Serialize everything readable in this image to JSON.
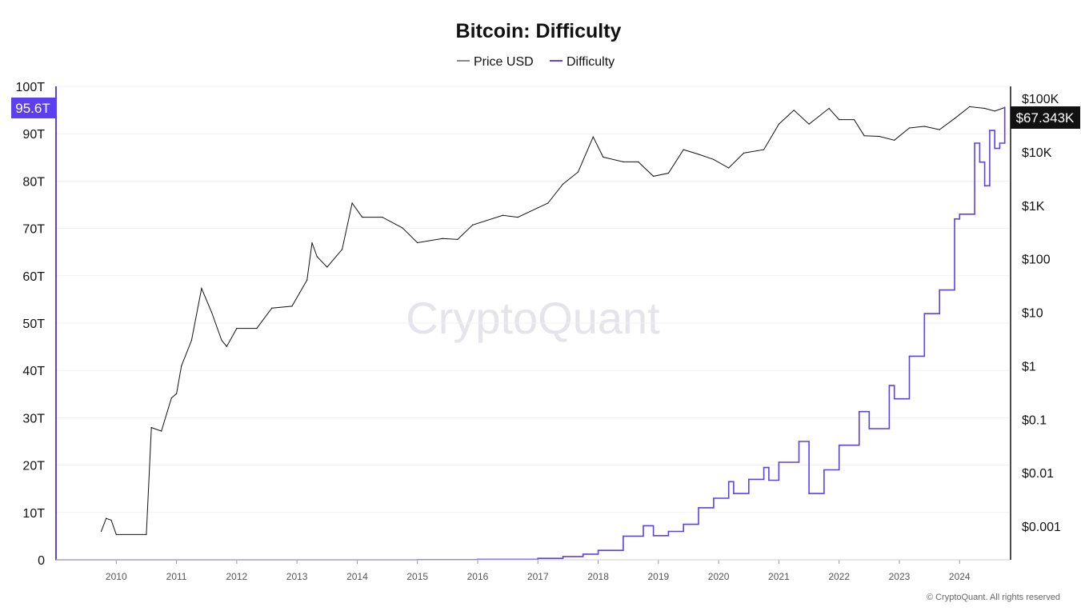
{
  "chart_data": {
    "type": "line",
    "title": "Bitcoin: Difficulty",
    "watermark": "CryptoQuant",
    "footer": "© CryptoQuant. All rights reserved",
    "legend_placement": "top-center",
    "grid": true,
    "x_ticks": [
      "2010",
      "2011",
      "2012",
      "2013",
      "2014",
      "2015",
      "2016",
      "2017",
      "2018",
      "2019",
      "2020",
      "2021",
      "2022",
      "2023",
      "2024"
    ],
    "xlim": [
      "2009-01",
      "2024-11"
    ],
    "left_axis": {
      "ticks": [
        "0",
        "10T",
        "20T",
        "30T",
        "40T",
        "50T",
        "60T",
        "70T",
        "80T",
        "90T",
        "100T"
      ],
      "ylim": [
        0,
        100
      ],
      "unit": "T",
      "current_label": "95.6T"
    },
    "right_axis": {
      "scale": "log",
      "ticks": [
        "$0.001",
        "$0.01",
        "$0.1",
        "$1",
        "$10",
        "$100",
        "$1K",
        "$10K",
        "$100K"
      ],
      "ylim": [
        0.001,
        100000
      ],
      "current_label": "$67.343K"
    },
    "series": [
      {
        "name": "Price USD",
        "axis": "right",
        "color": "#111111",
        "points": [
          [
            "2009-10",
            0.0008
          ],
          [
            "2009-11",
            0.0014
          ],
          [
            "2009-12",
            0.0013
          ],
          [
            "2010-01",
            0.0007
          ],
          [
            "2010-07",
            0.0007
          ],
          [
            "2010-08",
            0.07
          ],
          [
            "2010-10",
            0.06
          ],
          [
            "2010-12",
            0.25
          ],
          [
            "2011-01",
            0.3
          ],
          [
            "2011-02",
            1
          ],
          [
            "2011-04",
            3
          ],
          [
            "2011-06",
            28
          ],
          [
            "2011-08",
            10
          ],
          [
            "2011-10",
            3
          ],
          [
            "2011-11",
            2.3
          ],
          [
            "2012-01",
            5
          ],
          [
            "2012-05",
            5
          ],
          [
            "2012-08",
            12
          ],
          [
            "2012-12",
            13
          ],
          [
            "2013-03",
            40
          ],
          [
            "2013-04",
            200
          ],
          [
            "2013-05",
            110
          ],
          [
            "2013-07",
            70
          ],
          [
            "2013-10",
            150
          ],
          [
            "2013-12",
            1100
          ],
          [
            "2014-02",
            600
          ],
          [
            "2014-06",
            600
          ],
          [
            "2014-10",
            380
          ],
          [
            "2015-01",
            200
          ],
          [
            "2015-06",
            240
          ],
          [
            "2015-09",
            230
          ],
          [
            "2015-12",
            430
          ],
          [
            "2016-06",
            650
          ],
          [
            "2016-09",
            600
          ],
          [
            "2017-01",
            900
          ],
          [
            "2017-03",
            1100
          ],
          [
            "2017-06",
            2500
          ],
          [
            "2017-09",
            4200
          ],
          [
            "2017-12",
            19000
          ],
          [
            "2018-02",
            8000
          ],
          [
            "2018-06",
            6500
          ],
          [
            "2018-09",
            6500
          ],
          [
            "2018-12",
            3500
          ],
          [
            "2019-03",
            4000
          ],
          [
            "2019-06",
            11000
          ],
          [
            "2019-09",
            9000
          ],
          [
            "2019-12",
            7200
          ],
          [
            "2020-03",
            5000
          ],
          [
            "2020-06",
            9500
          ],
          [
            "2020-10",
            11000
          ],
          [
            "2021-01",
            33000
          ],
          [
            "2021-04",
            60000
          ],
          [
            "2021-07",
            33000
          ],
          [
            "2021-11",
            65000
          ],
          [
            "2022-01",
            40000
          ],
          [
            "2022-04",
            40000
          ],
          [
            "2022-06",
            20000
          ],
          [
            "2022-09",
            19500
          ],
          [
            "2022-12",
            16500
          ],
          [
            "2023-03",
            28000
          ],
          [
            "2023-06",
            30000
          ],
          [
            "2023-09",
            26000
          ],
          [
            "2023-12",
            42000
          ],
          [
            "2024-03",
            70000
          ],
          [
            "2024-06",
            65000
          ],
          [
            "2024-08",
            58000
          ],
          [
            "2024-10",
            67343
          ]
        ]
      },
      {
        "name": "Difficulty",
        "axis": "left",
        "color": "#5b3ff0",
        "points": [
          [
            "2009-01",
            0
          ],
          [
            "2014-01",
            0.001
          ],
          [
            "2015-01",
            0.04
          ],
          [
            "2016-01",
            0.1
          ],
          [
            "2017-01",
            0.3
          ],
          [
            "2017-06",
            0.7
          ],
          [
            "2017-10",
            1.2
          ],
          [
            "2018-01",
            2
          ],
          [
            "2018-06",
            5
          ],
          [
            "2018-10",
            7.2
          ],
          [
            "2018-12",
            5.1
          ],
          [
            "2019-03",
            6
          ],
          [
            "2019-06",
            7.5
          ],
          [
            "2019-09",
            11
          ],
          [
            "2019-12",
            13
          ],
          [
            "2020-03",
            16.5
          ],
          [
            "2020-04",
            14
          ],
          [
            "2020-07",
            17
          ],
          [
            "2020-10",
            19.5
          ],
          [
            "2020-11",
            16.8
          ],
          [
            "2021-01",
            20.6
          ],
          [
            "2021-05",
            25
          ],
          [
            "2021-07",
            14
          ],
          [
            "2021-10",
            19
          ],
          [
            "2022-01",
            24.2
          ],
          [
            "2022-05",
            31.3
          ],
          [
            "2022-07",
            27.7
          ],
          [
            "2022-11",
            36.8
          ],
          [
            "2022-12",
            34
          ],
          [
            "2023-03",
            43
          ],
          [
            "2023-06",
            52
          ],
          [
            "2023-09",
            57
          ],
          [
            "2023-12",
            72
          ],
          [
            "2024-01",
            73
          ],
          [
            "2024-04",
            88
          ],
          [
            "2024-05",
            84
          ],
          [
            "2024-06",
            79
          ],
          [
            "2024-07",
            90.7
          ],
          [
            "2024-08",
            86.9
          ],
          [
            "2024-09",
            88
          ],
          [
            "2024-10",
            95.6
          ]
        ]
      }
    ]
  }
}
